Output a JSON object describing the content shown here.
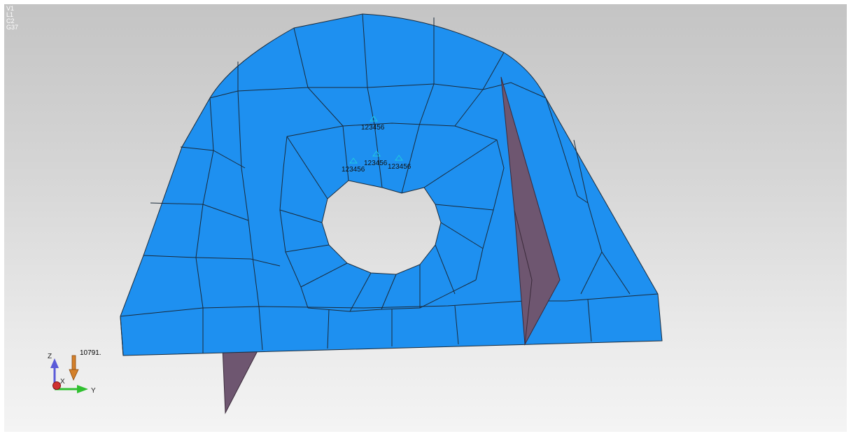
{
  "viewport": {
    "status_lines": [
      "V1",
      "L1",
      "C2",
      "G37"
    ],
    "background_top": "#c4c4c4",
    "background_bottom": "#f4f4f4"
  },
  "model": {
    "mesh_color": "#1e90f0",
    "mesh_edge_color": "#1a2a3a",
    "stiffener_color": "#6e5670",
    "constraint_color": "#20c8e0",
    "constraint_labels": [
      "123456",
      "123456",
      "123456",
      "123456"
    ]
  },
  "load": {
    "value_label": "10791.",
    "arrow_color": "#d4802a"
  },
  "triad": {
    "z_label": "Z",
    "x_label": "X",
    "y_label": "Y",
    "z_color": "#5a5ad8",
    "x_color": "#d03030",
    "y_color": "#30c030"
  }
}
